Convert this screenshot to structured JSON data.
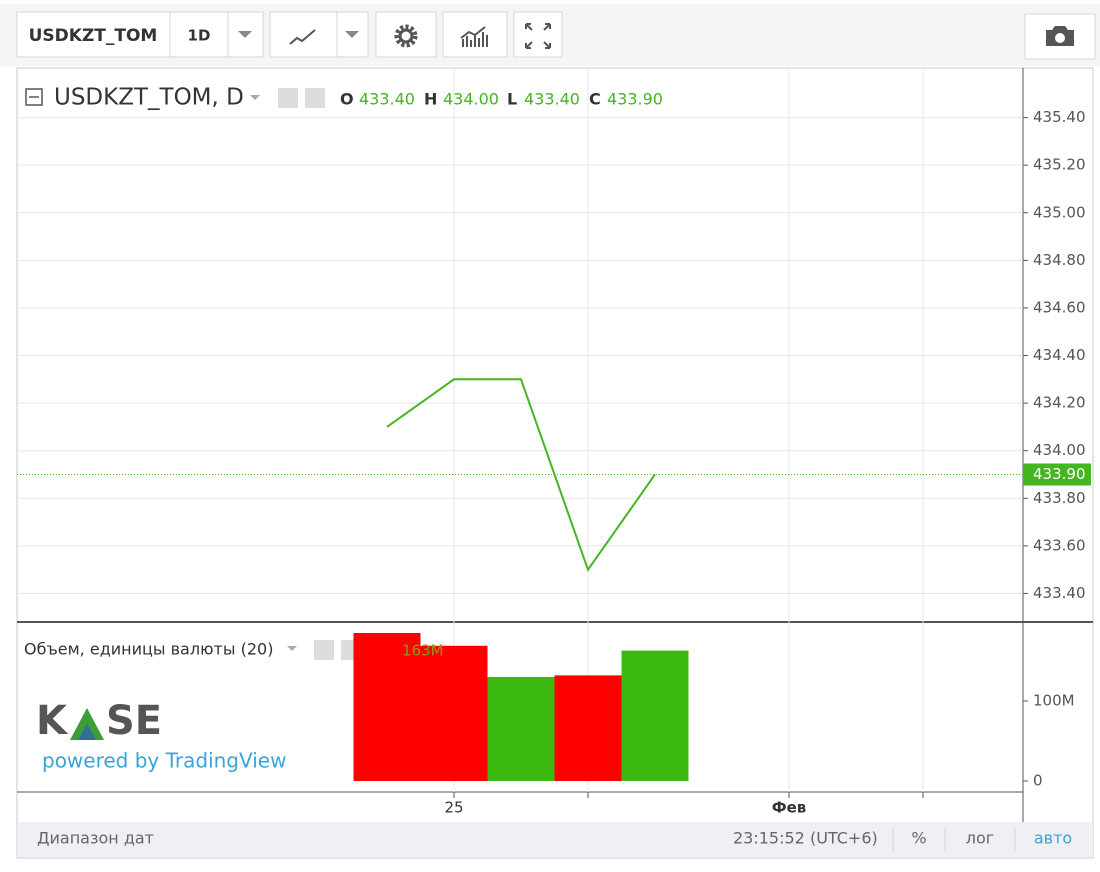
{
  "toolbar": {
    "symbol": "USDKZT_TOM",
    "interval": "1D"
  },
  "legend": {
    "title": "USDKZT_TOM, D",
    "open_label": "O",
    "open": {
      "value": 433.4,
      "label": "433.40"
    },
    "high_label": "H",
    "high": {
      "value": 434.0,
      "label": "434.00"
    },
    "low_label": "L",
    "low": {
      "value": 433.4,
      "label": "433.40"
    },
    "close_label": "C",
    "close": {
      "value": 433.9,
      "label": "433.90"
    }
  },
  "volume_legend": "Объем, единицы валюты (20)",
  "logo": {
    "left": "K",
    "right": "SE",
    "tagline": "powered by TradingView"
  },
  "footer": {
    "range": "Диапазон дат",
    "time": "23:15:52 (UTC+6)",
    "percent": "%",
    "log": "лог",
    "auto": "авто"
  },
  "chart_data": [
    {
      "type": "line",
      "categories": [
        null,
        "25",
        null,
        null,
        null,
        null,
        "Фев",
        null,
        null,
        null
      ],
      "values": [
        434.1,
        434.3,
        434.3,
        433.5,
        433.9,
        null,
        null,
        null,
        null,
        null
      ],
      "color": "#45b521",
      "ylim": [
        433.28,
        435.6
      ],
      "yticks": [
        {
          "value": 433.4,
          "label": "433.40"
        },
        {
          "value": 433.6,
          "label": "433.60"
        },
        {
          "value": 433.8,
          "label": "433.80"
        },
        {
          "value": 434.0,
          "label": "434.00"
        },
        {
          "value": 434.2,
          "label": "434.20"
        },
        {
          "value": 434.4,
          "label": "434.40"
        },
        {
          "value": 434.6,
          "label": "434.60"
        },
        {
          "value": 434.8,
          "label": "434.80"
        },
        {
          "value": 435.0,
          "label": "435.00"
        },
        {
          "value": 435.2,
          "label": "435.20"
        },
        {
          "value": 435.4,
          "label": "435.40"
        }
      ],
      "grid": true,
      "last_value_label": "433.90"
    },
    {
      "type": "bar",
      "values": [
        185000000,
        169000000,
        130000000,
        132000000,
        163000000
      ],
      "colors": [
        "#ff0000",
        "#ff0000",
        "#3cba12",
        "#ff0000",
        "#3cba12"
      ],
      "value_labels": [
        null,
        null,
        null,
        null,
        "163M"
      ],
      "ylim": [
        -13750000,
        196250000
      ],
      "yticks": [
        0,
        {
          "value": 100000000,
          "label": "100M"
        }
      ]
    }
  ]
}
